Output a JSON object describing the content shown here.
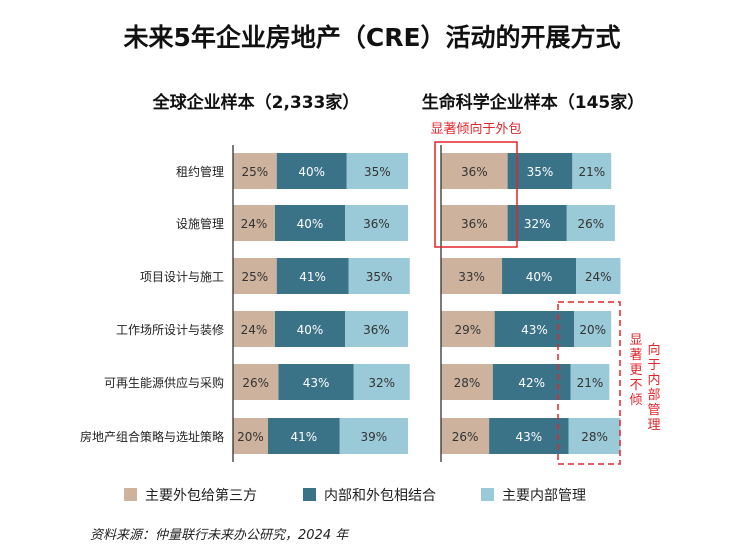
{
  "title": "未来5年企业房地产（CRE）活动的开展方式",
  "source": "资料来源：仲量联行未来办公研究，2024 年",
  "annotations": {
    "outsourcing": "显著倾向于外包",
    "internal": "显著更不倾向于内部管理"
  },
  "legend": [
    "主要外包给第三方",
    "内部和外包相结合",
    "主要内部管理"
  ],
  "colors": {
    "outsource": "#cdb29e",
    "hybrid": "#3a7288",
    "internal": "#9ac9d8",
    "highlight": "#e0262b",
    "axis": "#333333"
  },
  "chart_data": [
    {
      "type": "bar",
      "stacked": true,
      "orientation": "horizontal",
      "title": "全球企业样本（2,333家）",
      "categories": [
        "租约管理",
        "设施管理",
        "项目设计与施工",
        "工作场所设计与装修",
        "可再生能源供应与采购",
        "房地产组合策略与选址策略"
      ],
      "series": [
        {
          "name": "主要外包给第三方",
          "values": [
            25,
            24,
            25,
            24,
            26,
            20
          ]
        },
        {
          "name": "内部和外包相结合",
          "values": [
            40,
            40,
            41,
            40,
            43,
            41
          ]
        },
        {
          "name": "主要内部管理",
          "values": [
            35,
            36,
            35,
            36,
            32,
            39
          ]
        }
      ],
      "unit": "%"
    },
    {
      "type": "bar",
      "stacked": true,
      "orientation": "horizontal",
      "title": "生命科学企业样本（145家）",
      "categories": [
        "租约管理",
        "设施管理",
        "项目设计与施工",
        "工作场所设计与装修",
        "可再生能源供应与采购",
        "房地产组合策略与选址策略"
      ],
      "series": [
        {
          "name": "主要外包给第三方",
          "values": [
            36,
            36,
            33,
            29,
            28,
            26
          ]
        },
        {
          "name": "内部和外包相结合",
          "values": [
            35,
            32,
            40,
            43,
            42,
            43
          ]
        },
        {
          "name": "主要内部管理",
          "values": [
            21,
            26,
            24,
            20,
            21,
            28
          ]
        }
      ],
      "unit": "%"
    }
  ]
}
